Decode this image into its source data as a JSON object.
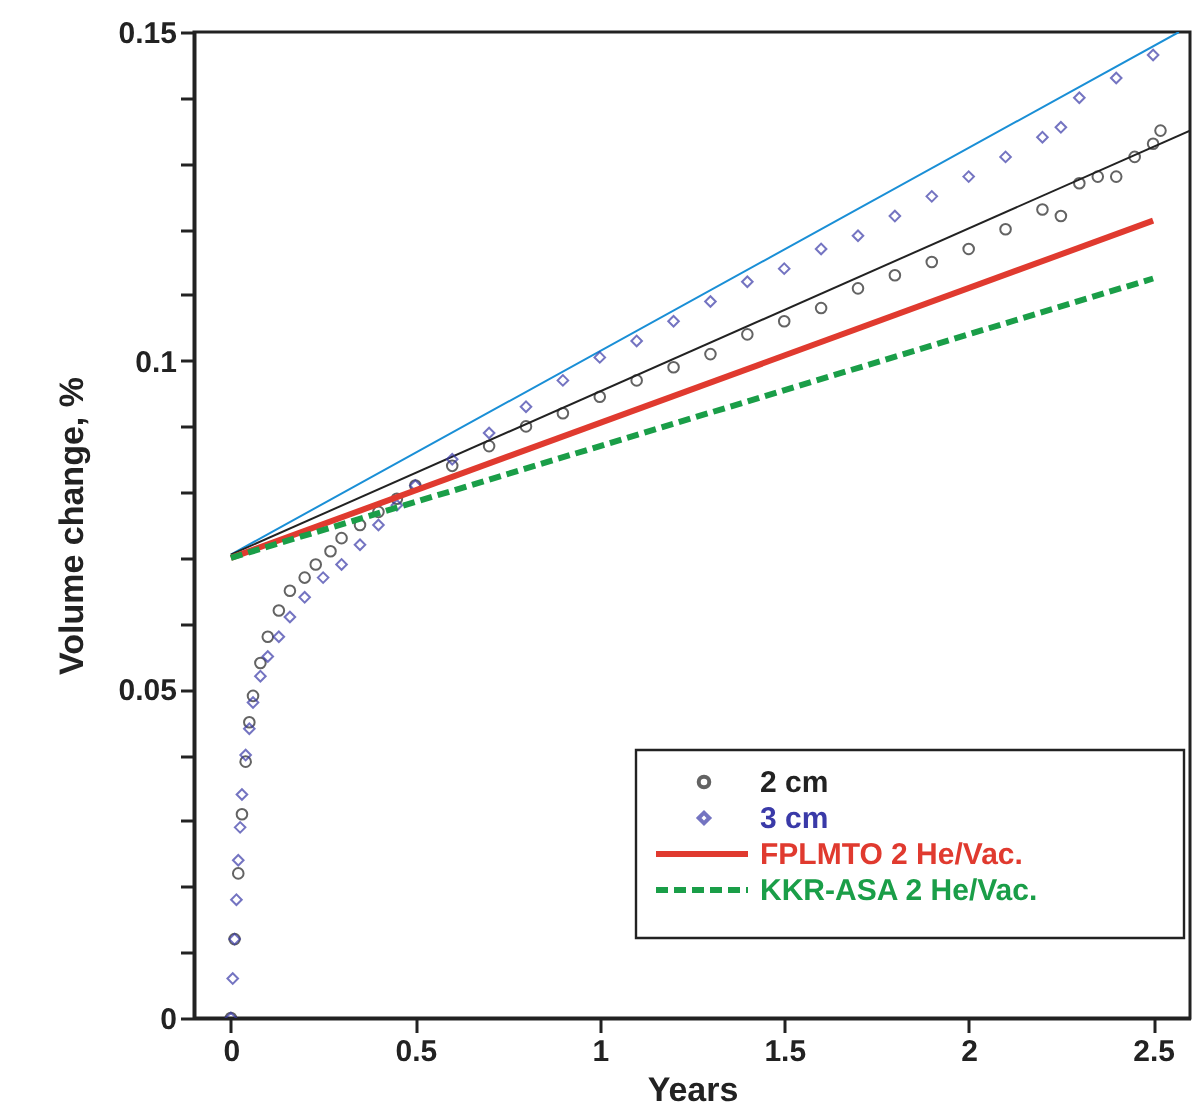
{
  "chart_data": {
    "type": "scatter",
    "xlabel": "Years",
    "ylabel": "Volume change, %",
    "xlim": [
      -0.1,
      2.6
    ],
    "ylim": [
      0,
      0.15
    ],
    "xticks": [
      0,
      0.5,
      1,
      1.5,
      2,
      2.5
    ],
    "yticks": [
      0,
      {
        "value": 0.01,
        "label": null
      },
      {
        "value": 0.02,
        "label": null
      },
      {
        "value": 0.03,
        "label": null
      },
      {
        "value": 0.04,
        "label": null
      },
      0.05,
      {
        "value": 0.06,
        "label": null
      },
      {
        "value": 0.07,
        "label": null
      },
      {
        "value": 0.08,
        "label": null
      },
      {
        "value": 0.09,
        "label": null
      },
      0.1,
      {
        "value": 0.11,
        "label": null
      },
      {
        "value": 0.12,
        "label": null
      },
      {
        "value": 0.13,
        "label": null
      },
      {
        "value": 0.14,
        "label": null
      },
      0.15
    ],
    "grid": false,
    "legend": "bottom right",
    "series": [
      {
        "type": "line",
        "color": "#1a8fd6",
        "line_style": "solid",
        "marker": "none",
        "x": [
          0,
          2.57
        ],
        "values": [
          0.0705,
          0.15
        ]
      },
      {
        "type": "line",
        "color": "#222222",
        "line_style": "solid",
        "marker": "none",
        "x": [
          0,
          2.6
        ],
        "values": [
          0.0705,
          0.135
        ]
      },
      {
        "name": "2 cm",
        "type": "scatter",
        "color": "#222222",
        "marker": "circle",
        "x": [
          0,
          0.01,
          0.02,
          0.03,
          0.04,
          0.05,
          0.06,
          0.08,
          0.1,
          0.13,
          0.16,
          0.2,
          0.23,
          0.27,
          0.3,
          0.35,
          0.4,
          0.45,
          0.5,
          0.6,
          0.7,
          0.8,
          0.9,
          1.0,
          1.1,
          1.2,
          1.3,
          1.4,
          1.5,
          1.6,
          1.7,
          1.8,
          1.9,
          2.0,
          2.1,
          2.2,
          2.25,
          2.3,
          2.35,
          2.4,
          2.45,
          2.5,
          2.52
        ],
        "values": [
          0,
          0.012,
          0.022,
          0.031,
          0.039,
          0.045,
          0.049,
          0.054,
          0.058,
          0.062,
          0.065,
          0.067,
          0.069,
          0.071,
          0.073,
          0.075,
          0.077,
          0.079,
          0.081,
          0.084,
          0.087,
          0.09,
          0.092,
          0.0945,
          0.097,
          0.099,
          0.101,
          0.104,
          0.106,
          0.108,
          0.111,
          0.113,
          0.115,
          0.117,
          0.12,
          0.123,
          0.122,
          0.127,
          0.128,
          0.128,
          0.131,
          0.133,
          0.135
        ]
      },
      {
        "name": "3 cm",
        "type": "scatter",
        "color": "#3a3aa8",
        "marker": "diamond",
        "x": [
          0,
          0.005,
          0.01,
          0.015,
          0.02,
          0.025,
          0.03,
          0.04,
          0.05,
          0.06,
          0.08,
          0.1,
          0.13,
          0.16,
          0.2,
          0.25,
          0.3,
          0.35,
          0.4,
          0.45,
          0.5,
          0.6,
          0.7,
          0.8,
          0.9,
          1.0,
          1.1,
          1.2,
          1.3,
          1.4,
          1.5,
          1.6,
          1.7,
          1.8,
          1.9,
          2.0,
          2.1,
          2.2,
          2.25,
          2.3,
          2.4,
          2.5
        ],
        "values": [
          0,
          0.006,
          0.012,
          0.018,
          0.024,
          0.029,
          0.034,
          0.04,
          0.044,
          0.048,
          0.052,
          0.055,
          0.058,
          0.061,
          0.064,
          0.067,
          0.069,
          0.072,
          0.075,
          0.078,
          0.081,
          0.085,
          0.089,
          0.093,
          0.097,
          0.1005,
          0.103,
          0.106,
          0.109,
          0.112,
          0.114,
          0.117,
          0.119,
          0.122,
          0.125,
          0.128,
          0.131,
          0.134,
          0.1355,
          0.14,
          0.143,
          0.1465
        ]
      },
      {
        "name": "FPLMTO  2 He/Vac.",
        "type": "line",
        "color": "#e03a2f",
        "line_style": "solid",
        "marker": "none",
        "x": [
          0,
          2.5
        ],
        "values": [
          0.07,
          0.1213
        ]
      },
      {
        "name": "KKR-ASA  2 He/Vac.",
        "type": "line",
        "color": "#1a9e48",
        "line_style": "dashed",
        "marker": "none",
        "x": [
          0,
          2.5
        ],
        "values": [
          0.07,
          0.1125
        ]
      }
    ]
  }
}
